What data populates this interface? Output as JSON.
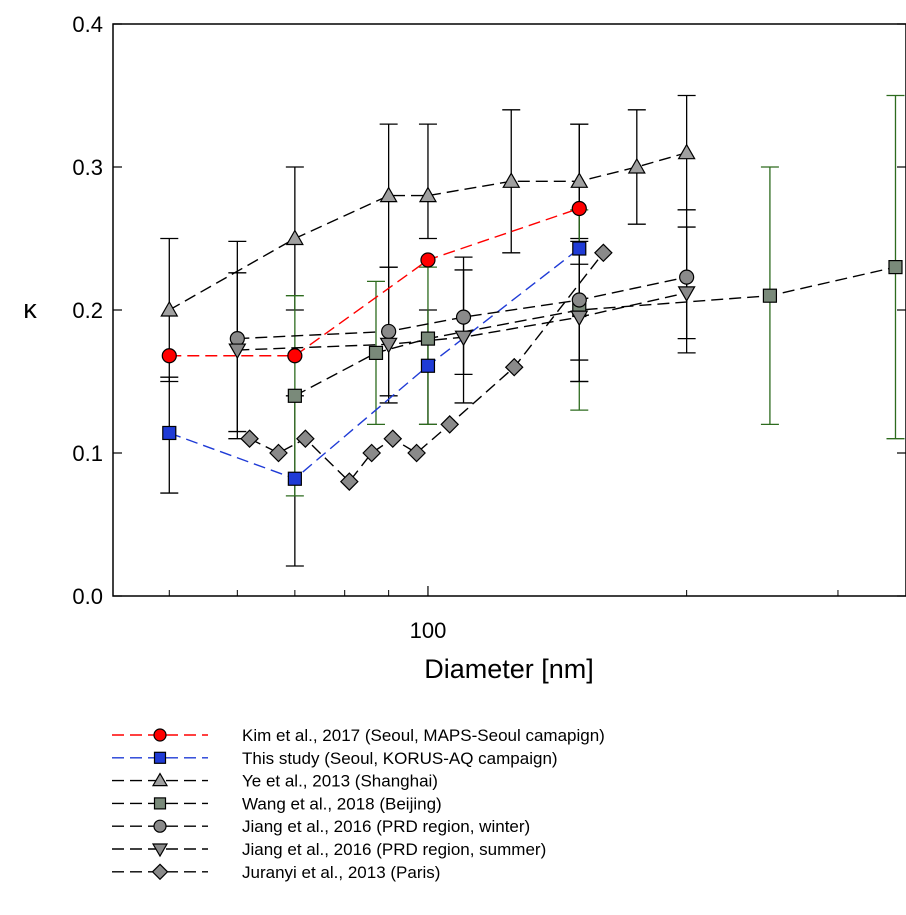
{
  "chart_data": {
    "type": "scatter",
    "xlabel": "Diameter [nm]",
    "ylabel": "κ",
    "x_scale": "log",
    "xlim": [
      43,
      360
    ],
    "ylim": [
      0,
      0.4
    ],
    "x_ticks": [
      100
    ],
    "x_tick_labels": [
      "100"
    ],
    "x_minor_ticks": [
      50,
      60,
      70,
      80,
      90,
      200,
      300
    ],
    "y_ticks": [
      0.0,
      0.1,
      0.2,
      0.3,
      0.4
    ],
    "y_tick_labels": [
      "0.0",
      "0.1",
      "0.2",
      "0.3",
      "0.4"
    ],
    "grid": false,
    "legend_position": "bottom",
    "series": [
      {
        "name": "Kim et al., 2017 (Seoul, MAPS-Seoul camapign)",
        "marker": "circle",
        "color": "#ff0000",
        "line_color": "#ff0000",
        "x": [
          50,
          70,
          100,
          150
        ],
        "y": [
          0.168,
          0.168,
          0.235,
          0.271
        ]
      },
      {
        "name": "This study (Seoul, KORUS-AQ campaign)",
        "marker": "square",
        "color": "#1f3bd6",
        "line_color": "#1f3bd6",
        "x": [
          50,
          70,
          100,
          150
        ],
        "y": [
          0.114,
          0.082,
          0.161,
          0.243
        ],
        "err_low": [
          0.072,
          0.021,
          0.12,
          0.15
        ],
        "err_high": [
          0.153,
          0.14,
          0.2,
          0.33
        ]
      },
      {
        "name": "Ye et al., 2013 (Shanghai)",
        "marker": "triangle-up",
        "color": "#a0a0a0",
        "line_color": "#000000",
        "x": [
          50,
          70,
          90,
          100,
          125,
          150,
          175,
          200
        ],
        "y": [
          0.2,
          0.25,
          0.28,
          0.28,
          0.29,
          0.29,
          0.3,
          0.31
        ],
        "err_low": [
          0.15,
          0.2,
          0.23,
          0.25,
          0.24,
          0.25,
          0.26,
          0.27
        ],
        "err_high": [
          0.25,
          0.3,
          0.33,
          0.33,
          0.34,
          0.33,
          0.34,
          0.35
        ]
      },
      {
        "name": "Wang et al., 2018 (Beijing)",
        "marker": "square",
        "color": "#7a8a7a",
        "line_color": "#000000",
        "err_color": "#2d6b1e",
        "x": [
          70,
          87,
          100,
          150,
          250,
          350
        ],
        "y": [
          0.14,
          0.17,
          0.18,
          0.2,
          0.21,
          0.23
        ],
        "err_low": [
          0.07,
          0.12,
          0.12,
          0.13,
          0.12,
          0.11
        ],
        "err_high": [
          0.21,
          0.22,
          0.23,
          0.27,
          0.3,
          0.35
        ]
      },
      {
        "name": "Jiang et al., 2016 (PRD region, winter)",
        "marker": "circle",
        "color": "#8a8a8a",
        "line_color": "#000000",
        "x": [
          60,
          90,
          110,
          150,
          200
        ],
        "y": [
          0.18,
          0.185,
          0.195,
          0.207,
          0.223
        ],
        "err_low": [
          0.115,
          0.14,
          0.155,
          0.165,
          0.18
        ],
        "err_high": [
          0.248,
          0.23,
          0.237,
          0.248,
          0.27
        ]
      },
      {
        "name": "Jiang et al., 2016 (PRD region, summer)",
        "marker": "triangle-down",
        "color": "#8a8a8a",
        "line_color": "#000000",
        "x": [
          60,
          90,
          110,
          150,
          200
        ],
        "y": [
          0.172,
          0.176,
          0.181,
          0.195,
          0.212
        ],
        "err_low": [
          0.11,
          0.135,
          0.135,
          0.15,
          0.17
        ],
        "err_high": [
          0.226,
          0.23,
          0.228,
          0.232,
          0.258
        ]
      },
      {
        "name": "Juranyi et al., 2013 (Paris)",
        "marker": "diamond",
        "color": "#8a8a8a",
        "line_color": "#000000",
        "x": [
          62,
          67,
          72,
          81,
          86,
          91,
          97,
          106,
          126,
          160
        ],
        "y": [
          0.11,
          0.1,
          0.11,
          0.08,
          0.1,
          0.11,
          0.1,
          0.12,
          0.16,
          0.24
        ]
      }
    ]
  }
}
